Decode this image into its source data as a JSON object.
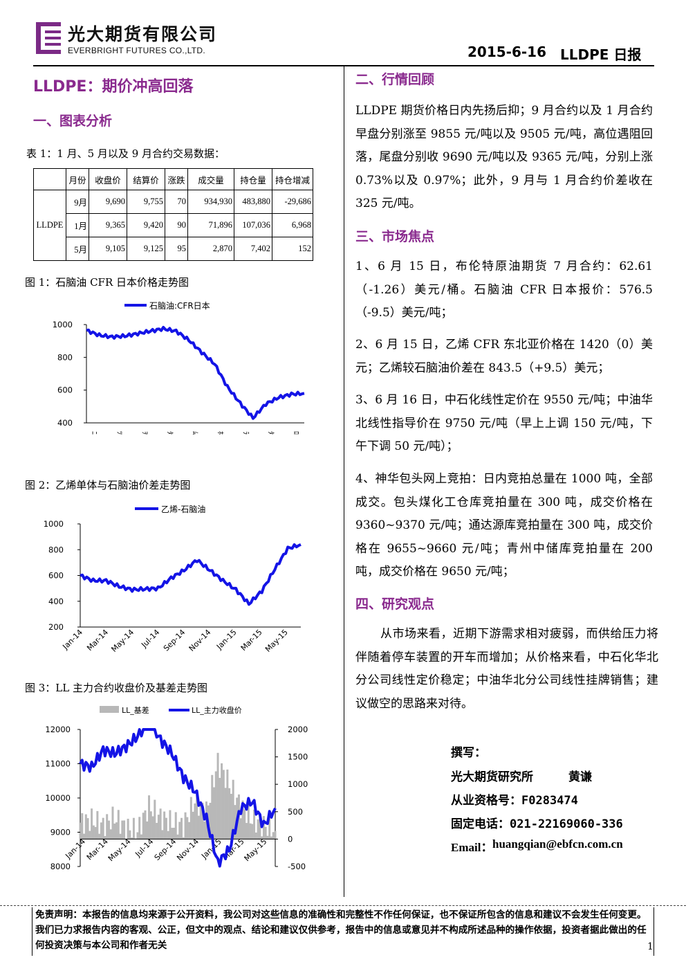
{
  "header": {
    "company_cn": "光大期货有限公司",
    "company_en": "EVERBRIGHT FUTURES CO.,LTD.",
    "date": "2015-6-16",
    "report_name": "LLDPE 日报"
  },
  "title": "LLDPE：期价冲高回落",
  "section1": {
    "heading": "一、图表分析",
    "table_caption": "表 1：1 月、5 月以及 9 月合约交易数据：",
    "table": {
      "columns": [
        "月份",
        "收盘价",
        "结算价",
        "涨跌",
        "成交量",
        "持仓量",
        "持仓增减"
      ],
      "row_label": "LLDPE",
      "rows": [
        [
          "9月",
          "9,690",
          "9,755",
          "70",
          "934,930",
          "483,880",
          "-29,686"
        ],
        [
          "1月",
          "9,365",
          "9,420",
          "90",
          "71,896",
          "107,036",
          "6,968"
        ],
        [
          "5月",
          "9,105",
          "9,125",
          "95",
          "2,870",
          "7,402",
          "152"
        ]
      ]
    },
    "fig1_caption": "图 1：石脑油 CFR 日本价格走势图",
    "fig2_caption": "图 2：乙烯单体与石脑油价差走势图",
    "fig3_caption": "图 3：LL 主力合约收盘价及基差走势图"
  },
  "chart_data": [
    {
      "type": "line",
      "title": "",
      "series": [
        {
          "name": "石脑油:CFR日本",
          "color": "#1414e6",
          "x": [
            "2014-01",
            "2014-02",
            "2014-03",
            "2014-04",
            "2014-05",
            "2014-06",
            "2014-07",
            "2014-08",
            "2014-09",
            "2014-10",
            "2014-11",
            "2014-12",
            "2015-01",
            "2015-02",
            "2015-03",
            "2015-04",
            "2015-05",
            "2015-06"
          ],
          "values": [
            965,
            935,
            925,
            930,
            945,
            960,
            975,
            960,
            905,
            830,
            760,
            620,
            520,
            430,
            515,
            555,
            575,
            580
          ]
        }
      ],
      "ylim": [
        400,
        1000
      ],
      "yticks": [
        "400",
        "600",
        "800",
        "1000"
      ],
      "xticks_garbled": [
        "ﾆ",
        "ﾂ",
        "ｦ",
        "ﾀ",
        "ﾑ",
        "ﾎ",
        "ﾗ",
        "ﾀ",
        "ﾛ"
      ]
    },
    {
      "type": "line",
      "title": "",
      "series": [
        {
          "name": "乙烯-石脑油",
          "color": "#1414e6",
          "x": [
            "2014-01",
            "2014-02",
            "2014-03",
            "2014-04",
            "2014-05",
            "2014-06",
            "2014-07",
            "2014-08",
            "2014-09",
            "2014-10",
            "2014-11",
            "2014-12",
            "2015-01",
            "2015-02",
            "2015-03",
            "2015-04",
            "2015-05",
            "2015-06"
          ],
          "values": [
            600,
            560,
            560,
            515,
            490,
            495,
            500,
            580,
            640,
            720,
            640,
            560,
            490,
            380,
            480,
            650,
            810,
            840
          ]
        }
      ],
      "ylim": [
        200,
        1000
      ],
      "yticks": [
        "200",
        "400",
        "600",
        "800",
        "1000"
      ],
      "xticks": [
        "Jan-14",
        "Mar-14",
        "May-14",
        "Jul-14",
        "Sep-14",
        "Nov-14",
        "Jan-15",
        "Mar-15",
        "May-15"
      ]
    },
    {
      "type": "line",
      "title": "",
      "series": [
        {
          "name": "LL_基差",
          "axis": "right",
          "style": "area",
          "color": "#b8b8b8",
          "x": [
            "2014-01",
            "2014-02",
            "2014-03",
            "2014-04",
            "2014-05",
            "2014-06",
            "2014-07",
            "2014-08",
            "2014-09",
            "2014-10",
            "2014-11",
            "2014-12",
            "2015-01",
            "2015-02",
            "2015-03",
            "2015-04",
            "2015-05",
            "2015-06"
          ],
          "values": [
            300,
            350,
            250,
            400,
            200,
            150,
            600,
            400,
            300,
            250,
            700,
            500,
            1400,
            1000,
            600,
            350,
            250,
            150
          ]
        },
        {
          "name": "LL_主力收盘价",
          "axis": "left",
          "style": "line",
          "color": "#1414e6",
          "x": [
            "2014-01",
            "2014-02",
            "2014-03",
            "2014-04",
            "2014-05",
            "2014-06",
            "2014-07",
            "2014-08",
            "2014-09",
            "2014-10",
            "2014-11",
            "2014-12",
            "2015-01",
            "2015-02",
            "2015-03",
            "2015-04",
            "2015-05",
            "2015-06"
          ],
          "values": [
            11000,
            10900,
            11400,
            11300,
            11500,
            11800,
            12300,
            11700,
            11300,
            10600,
            10200,
            9400,
            8100,
            8500,
            9700,
            9900,
            9200,
            9700
          ]
        }
      ],
      "ylim": [
        8000,
        12000
      ],
      "y2lim": [
        -500,
        2000
      ],
      "yticks": [
        "8000",
        "9000",
        "10000",
        "11000",
        "12000"
      ],
      "y2ticks": [
        "-500",
        "0",
        "500",
        "1000",
        "1500",
        "2000"
      ],
      "xticks": [
        "Jan-14",
        "Mar-14",
        "May-14",
        "Jul-14",
        "Sep-14",
        "Nov-14",
        "Jan-15",
        "Mar-15",
        "May-15"
      ]
    }
  ],
  "section2": {
    "heading": "二、行情回顾",
    "text": "LLDPE 期货价格日内先扬后抑；9 月合约以及 1 月合约早盘分别涨至 9855 元/吨以及 9505 元/吨，高位遇阻回落，尾盘分别收 9690 元/吨以及 9365 元/吨，分别上涨 0.73%以及 0.97%；此外，9 月与 1 月合约价差收在 325 元/吨。"
  },
  "section3": {
    "heading": "三、市场焦点",
    "items": [
      "1、6 月 15 日，布伦特原油期货 7 月合约：62.61（-1.26）美元/桶。石脑油 CFR 日本报价：576.5（-9.5）美元/吨；",
      "2、6 月 15 日，乙烯 CFR 东北亚价格在 1420（0）美元；乙烯较石脑油价差在 843.5（+9.5）美元；",
      "3、6 月 16 日，中石化线性定价在 9550 元/吨；中油华北线性指导价在 9750 元/吨（早上上调 150 元/吨，下午下调 50 元/吨）；",
      "4、神华包头网上竞拍：日内竞拍总量在 1000 吨，全部成交。包头煤化工仓库竞拍量在 300 吨，成交价格在 9360~9370 元/吨；通达源库竞拍量在 300 吨，成交价格在 9655~9660 元/吨；青州中储库竞拍量在 200 吨，成交价格在 9650 元/吨；"
    ]
  },
  "section4": {
    "heading": "四、研究观点",
    "text": "从市场来看，近期下游需求相对疲弱，而供给压力将伴随着停车装置的开车而增加；从价格来看，中石化华北分公司线性定价稳定；中油华北分公司线性挂牌销售；建议做空的思路来对待。"
  },
  "author": {
    "label": "撰写：",
    "org": "光大期货研究所",
    "name": "黄谦",
    "cert": "从业资格号：F0283474",
    "phone": "固定电话：021-22169060-336",
    "email_label": "Email：",
    "email": "huangqian@ebfcn.com.cn"
  },
  "footer": {
    "disclaimer": "免责声明：本报告的信息均来源于公开资料，我公司对这些信息的准确性和完整性不作任何保证，也不保证所包含的信息和建议不会发生任何变更。我们已力求报告内容的客观、公正，但文中的观点、结论和建议仅供参考，报告中的信息或意见并不构成所述品种的操作依据，投资者据此做出的任何投资决策与本公司和作者无关",
    "page_number": "1"
  }
}
